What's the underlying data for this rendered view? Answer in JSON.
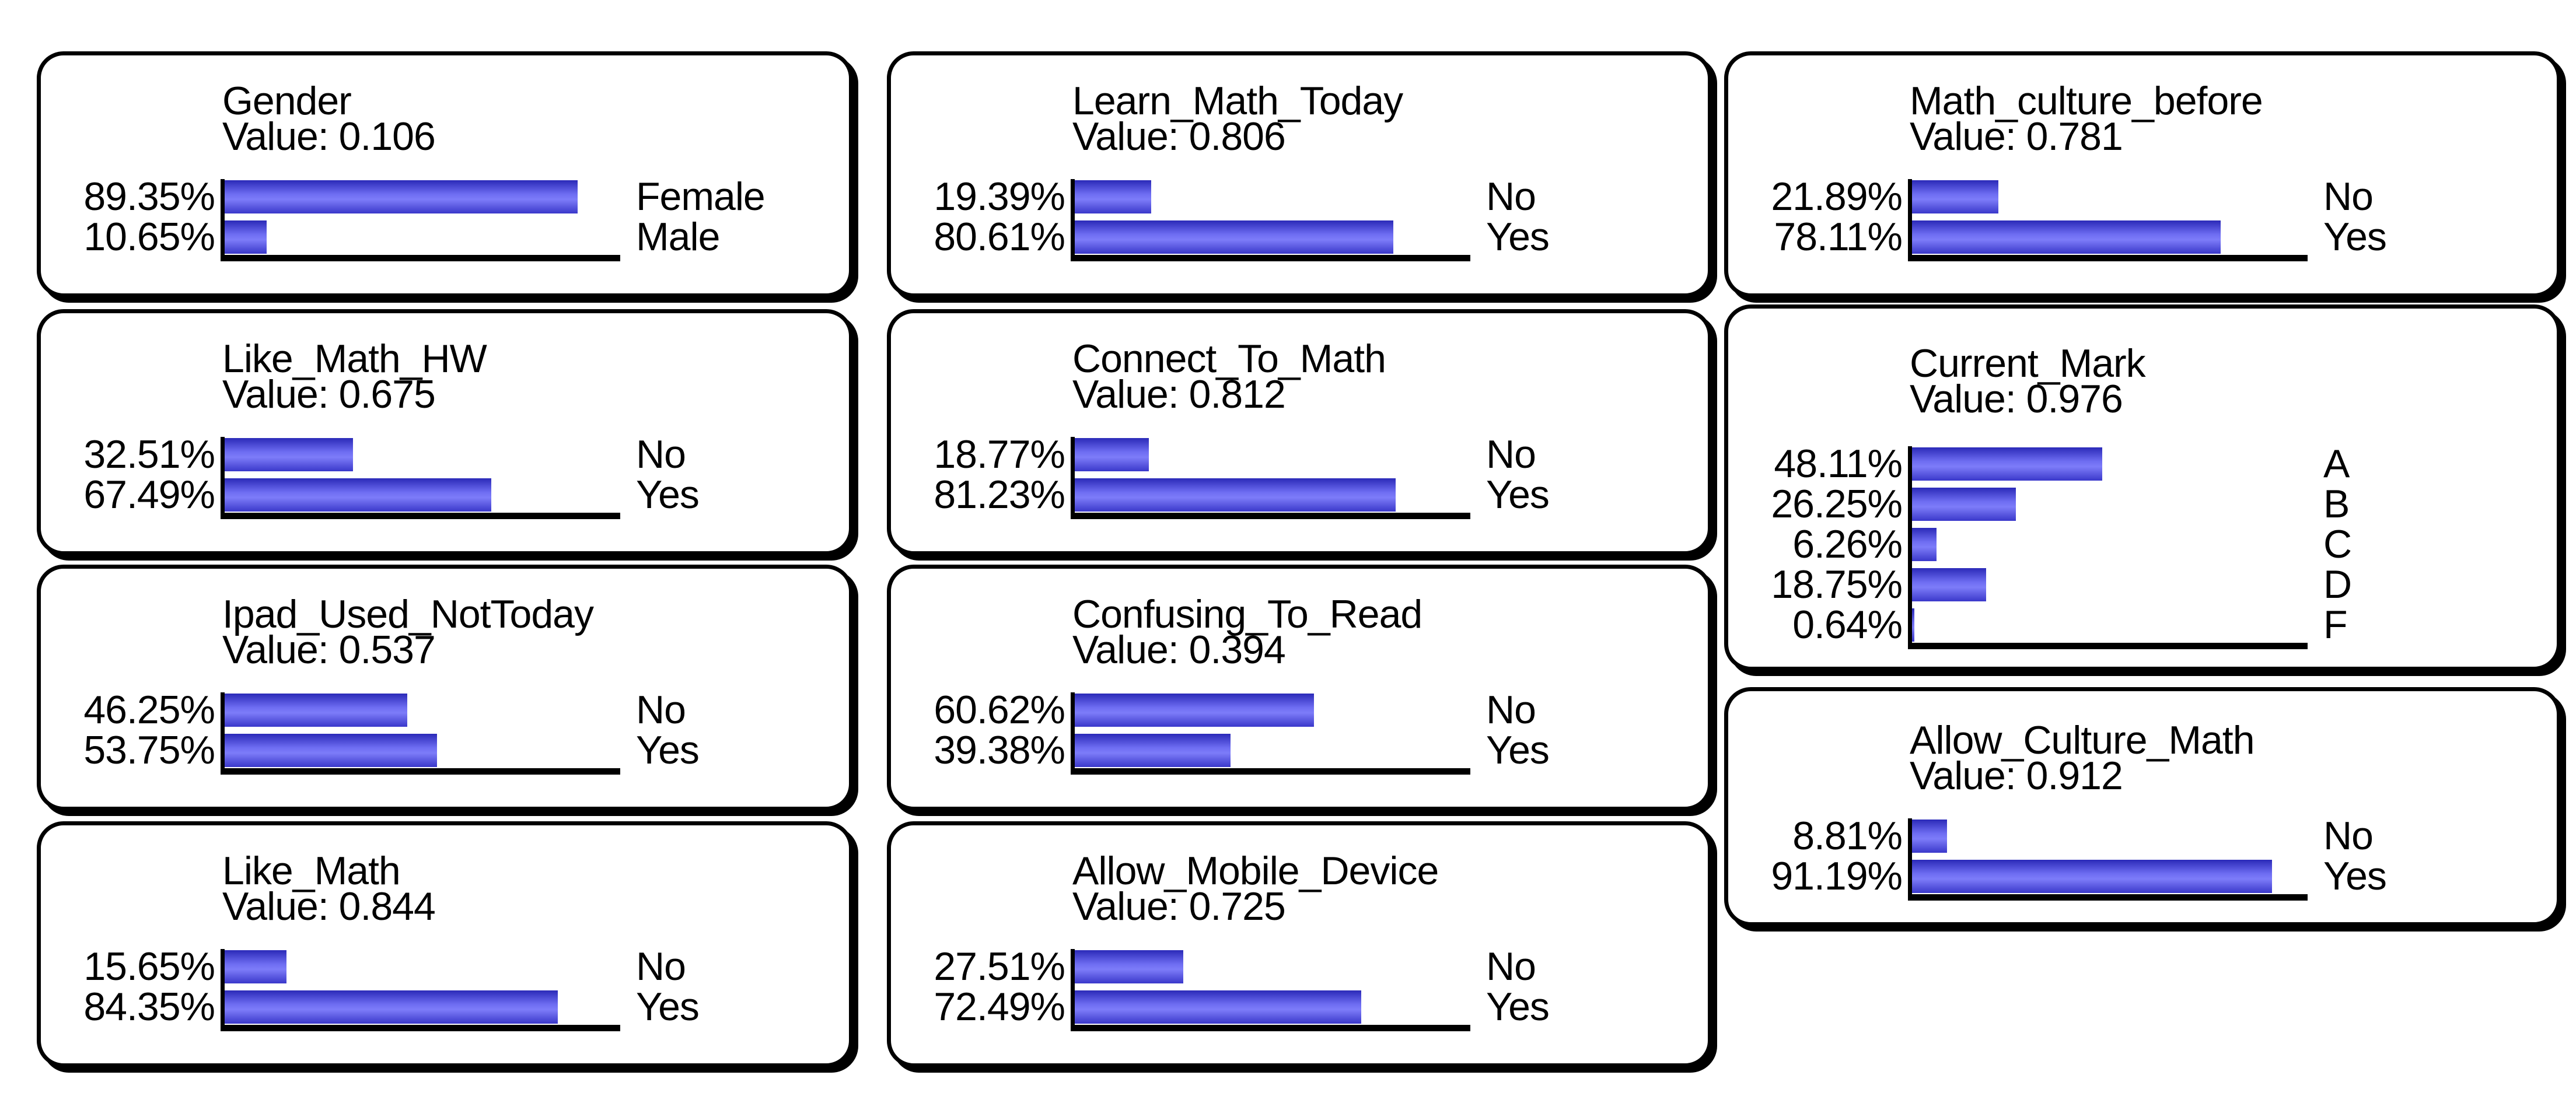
{
  "app": {
    "description": "Bayesian network belief-bar node monitors",
    "background_color": "#ffffff",
    "text_color": "#000000",
    "border_color": "#000000",
    "bar_gradient": [
      "#2b2ab8",
      "#7d7cf9",
      "#3a38ca"
    ]
  },
  "chart_data": [
    {
      "id": "gender",
      "type": "bar",
      "orientation": "horizontal",
      "title": "Gender",
      "value_label": "Value: 0.106",
      "value": 0.106,
      "categories": [
        "Female",
        "Male"
      ],
      "values": [
        89.35,
        10.65
      ],
      "pct_labels": [
        "89.35%",
        "10.65%"
      ],
      "xlim": [
        0,
        100
      ]
    },
    {
      "id": "learn_math_today",
      "type": "bar",
      "orientation": "horizontal",
      "title": "Learn_Math_Today",
      "value_label": "Value: 0.806",
      "value": 0.806,
      "categories": [
        "No",
        "Yes"
      ],
      "values": [
        19.39,
        80.61
      ],
      "pct_labels": [
        "19.39%",
        "80.61%"
      ],
      "xlim": [
        0,
        100
      ]
    },
    {
      "id": "math_culture_before",
      "type": "bar",
      "orientation": "horizontal",
      "title": "Math_culture_before",
      "value_label": "Value: 0.781",
      "value": 0.781,
      "categories": [
        "No",
        "Yes"
      ],
      "values": [
        21.89,
        78.11
      ],
      "pct_labels": [
        "21.89%",
        "78.11%"
      ],
      "xlim": [
        0,
        100
      ]
    },
    {
      "id": "like_math_hw",
      "type": "bar",
      "orientation": "horizontal",
      "title": "Like_Math_HW",
      "value_label": "Value: 0.675",
      "value": 0.675,
      "categories": [
        "No",
        "Yes"
      ],
      "values": [
        32.51,
        67.49
      ],
      "pct_labels": [
        "32.51%",
        "67.49%"
      ],
      "xlim": [
        0,
        100
      ]
    },
    {
      "id": "connect_to_math",
      "type": "bar",
      "orientation": "horizontal",
      "title": "Connect_To_Math",
      "value_label": "Value: 0.812",
      "value": 0.812,
      "categories": [
        "No",
        "Yes"
      ],
      "values": [
        18.77,
        81.23
      ],
      "pct_labels": [
        "18.77%",
        "81.23%"
      ],
      "xlim": [
        0,
        100
      ]
    },
    {
      "id": "current_mark",
      "type": "bar",
      "orientation": "horizontal",
      "title": "Current_Mark",
      "value_label": "Value: 0.976",
      "value": 0.976,
      "categories": [
        "A",
        "B",
        "C",
        "D",
        "F"
      ],
      "values": [
        48.11,
        26.25,
        6.26,
        18.75,
        0.64
      ],
      "pct_labels": [
        "48.11%",
        "26.25%",
        "6.26%",
        "18.75%",
        "0.64%"
      ],
      "xlim": [
        0,
        100
      ]
    },
    {
      "id": "ipad_used_nottoday",
      "type": "bar",
      "orientation": "horizontal",
      "title": "Ipad_Used_NotToday",
      "value_label": "Value: 0.537",
      "value": 0.537,
      "categories": [
        "No",
        "Yes"
      ],
      "values": [
        46.25,
        53.75
      ],
      "pct_labels": [
        "46.25%",
        "53.75%"
      ],
      "xlim": [
        0,
        100
      ]
    },
    {
      "id": "confusing_to_read",
      "type": "bar",
      "orientation": "horizontal",
      "title": "Confusing_To_Read",
      "value_label": "Value: 0.394",
      "value": 0.394,
      "categories": [
        "No",
        "Yes"
      ],
      "values": [
        60.62,
        39.38
      ],
      "pct_labels": [
        "60.62%",
        "39.38%"
      ],
      "xlim": [
        0,
        100
      ]
    },
    {
      "id": "allow_culture_math",
      "type": "bar",
      "orientation": "horizontal",
      "title": "Allow_Culture_Math",
      "value_label": "Value: 0.912",
      "value": 0.912,
      "categories": [
        "No",
        "Yes"
      ],
      "values": [
        8.81,
        91.19
      ],
      "pct_labels": [
        "8.81%",
        "91.19%"
      ],
      "xlim": [
        0,
        100
      ]
    },
    {
      "id": "like_math",
      "type": "bar",
      "orientation": "horizontal",
      "title": "Like_Math",
      "value_label": "Value: 0.844",
      "value": 0.844,
      "categories": [
        "No",
        "Yes"
      ],
      "values": [
        15.65,
        84.35
      ],
      "pct_labels": [
        "15.65%",
        "84.35%"
      ],
      "xlim": [
        0,
        100
      ]
    },
    {
      "id": "allow_mobile_device",
      "type": "bar",
      "orientation": "horizontal",
      "title": "Allow_Mobile_Device",
      "value_label": "Value: 0.725",
      "value": 0.725,
      "categories": [
        "No",
        "Yes"
      ],
      "values": [
        27.51,
        72.49
      ],
      "pct_labels": [
        "27.51%",
        "72.49%"
      ],
      "xlim": [
        0,
        100
      ]
    }
  ]
}
